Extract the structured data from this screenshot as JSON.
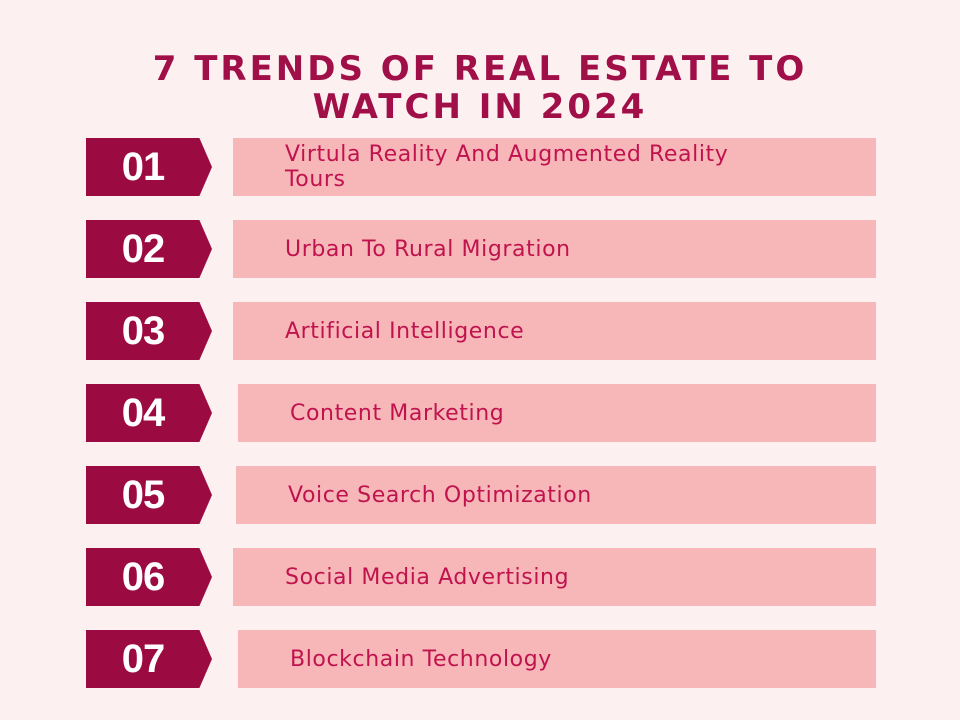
{
  "title": {
    "line1": "7 TRENDS OF REAL ESTATE TO",
    "line2": "WATCH IN 2024"
  },
  "colors": {
    "background": "#fdf0f1",
    "accent": "#9c0a42",
    "bar": "#f7b7b9",
    "bar_text": "#c0134e"
  },
  "trends": [
    {
      "number": "01",
      "label": "Virtula Reality And Augmented Reality Tours"
    },
    {
      "number": "02",
      "label": "Urban To Rural Migration"
    },
    {
      "number": "03",
      "label": "Artificial Intelligence"
    },
    {
      "number": "04",
      "label": "Content Marketing"
    },
    {
      "number": "05",
      "label": "Voice Search Optimization"
    },
    {
      "number": "06",
      "label": "Social Media Advertising"
    },
    {
      "number": "07",
      "label": "Blockchain Technology"
    }
  ]
}
